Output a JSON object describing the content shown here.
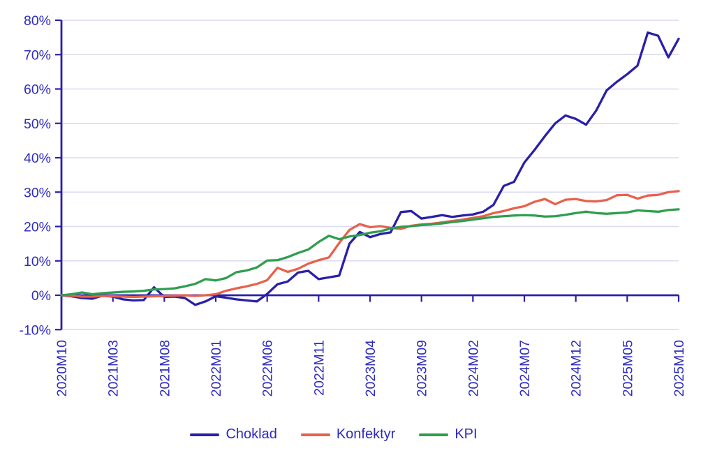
{
  "chart_data": {
    "type": "line",
    "title": "",
    "xlabel": "",
    "ylabel": "",
    "x": [
      "2020M10",
      "2020M11",
      "2020M12",
      "2021M01",
      "2021M02",
      "2021M03",
      "2021M04",
      "2021M05",
      "2021M06",
      "2021M07",
      "2021M08",
      "2021M09",
      "2021M10",
      "2021M11",
      "2021M12",
      "2022M01",
      "2022M02",
      "2022M03",
      "2022M04",
      "2022M05",
      "2022M06",
      "2022M07",
      "2022M08",
      "2022M09",
      "2022M10",
      "2022M11",
      "2022M12",
      "2023M01",
      "2023M02",
      "2023M03",
      "2023M04",
      "2023M05",
      "2023M06",
      "2023M07",
      "2023M08",
      "2023M09",
      "2023M10",
      "2023M11",
      "2023M12",
      "2024M01",
      "2024M02",
      "2024M03",
      "2024M04",
      "2024M05",
      "2024M06",
      "2024M07",
      "2024M08",
      "2024M09",
      "2024M10",
      "2024M11",
      "2024M12",
      "2025M01",
      "2025M02",
      "2025M03",
      "2025M04",
      "2025M05",
      "2025M06",
      "2025M07",
      "2025M08",
      "2025M09",
      "2025M10"
    ],
    "x_tick_every": 5,
    "x_tick_labels": [
      "2020M10",
      "2021M03",
      "2021M08",
      "2022M01",
      "2022M06",
      "2022M11",
      "2023M04",
      "2023M09",
      "2024M02",
      "2024M07",
      "2024M12",
      "2025M05",
      "2025M10"
    ],
    "y_axis": {
      "min": -10,
      "max": 80,
      "step": 10,
      "suffix": "%"
    },
    "grid": true,
    "legend_position": "bottom",
    "series": [
      {
        "name": "Choklad",
        "color": "#2a1fa8",
        "values": [
          0,
          -0.3,
          -0.8,
          -1,
          -0.1,
          -0.4,
          -1.2,
          -1.5,
          -1.4,
          2.3,
          -0.5,
          -0.4,
          -0.8,
          -2.8,
          -1.8,
          -0.3,
          -0.7,
          -1.2,
          -1.5,
          -1.8,
          0.4,
          3.2,
          4,
          6.6,
          7.1,
          4.7,
          5.2,
          5.7,
          15,
          18.4,
          16.9,
          17.8,
          18.3,
          24.2,
          24.5,
          22.3,
          22.8,
          23.3,
          22.8,
          23.2,
          23.5,
          24.3,
          26.3,
          31.8,
          33,
          38.6,
          42.3,
          46.3,
          50,
          52.3,
          51.3,
          49.6,
          53.8,
          59.6,
          62.1,
          64.3,
          66.8,
          76.4,
          75.5,
          69.2,
          74.6
        ]
      },
      {
        "name": "Konfektyr",
        "color": "#e8614c",
        "values": [
          0,
          -0.1,
          -0.4,
          -0.4,
          -0.2,
          -0.3,
          -0.4,
          -0.5,
          -0.4,
          -0.3,
          -0.2,
          -0.1,
          0,
          -0.2,
          0,
          0.3,
          1.3,
          2,
          2.6,
          3.3,
          4.4,
          8,
          6.8,
          7.7,
          9.2,
          10.2,
          11,
          15.2,
          19,
          20.7,
          19.8,
          20.1,
          19.6,
          19.3,
          20.2,
          20.6,
          20.8,
          21.2,
          21.6,
          22,
          22.5,
          23,
          23.9,
          24.5,
          25.3,
          25.9,
          27.2,
          28,
          26.5,
          27.8,
          28,
          27.4,
          27.3,
          27.7,
          29.1,
          29.2,
          28.1,
          29,
          29.2,
          30,
          30.3
        ]
      },
      {
        "name": "KPI",
        "color": "#2f9e4e",
        "values": [
          0,
          0.3,
          0.8,
          0.3,
          0.6,
          0.8,
          1,
          1.1,
          1.3,
          1.7,
          1.8,
          2,
          2.6,
          3.3,
          4.7,
          4.3,
          5,
          6.7,
          7.2,
          8.1,
          10.1,
          10.2,
          11.1,
          12.3,
          13.3,
          15.5,
          17.3,
          16.3,
          17.1,
          17.5,
          18.2,
          18.6,
          19.4,
          19.9,
          20.1,
          20.4,
          20.6,
          20.9,
          21.3,
          21.6,
          22,
          22.4,
          22.8,
          23,
          23.2,
          23.3,
          23.2,
          22.9,
          23,
          23.4,
          23.9,
          24.3,
          23.9,
          23.7,
          23.9,
          24.1,
          24.7,
          24.5,
          24.3,
          24.8,
          25
        ]
      }
    ],
    "colors": {
      "axis": "#2a1fa8",
      "grid": "#dadaf2",
      "label_text": "#2e2bbe"
    }
  },
  "legend": {
    "items": [
      "Choklad",
      "Konfektyr",
      "KPI"
    ]
  }
}
